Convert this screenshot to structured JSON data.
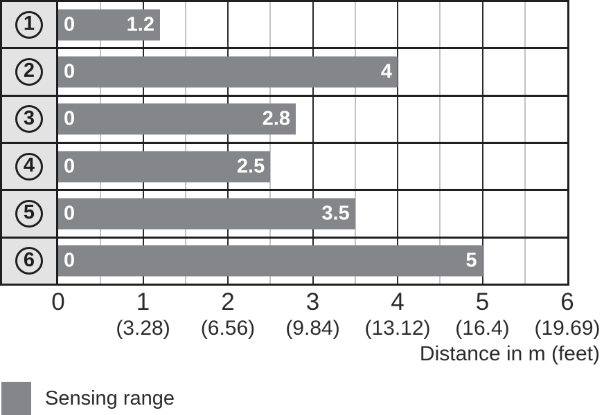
{
  "chart_data": {
    "type": "bar",
    "orientation": "horizontal",
    "title": "",
    "xlabel": "Distance in m (feet)",
    "xlim": [
      0,
      6
    ],
    "grid": {
      "minor_step_m": 0.5,
      "major_step_m": 1,
      "minor_gridlines_m": [
        0.5,
        1.5,
        2.5,
        3.5,
        4.5,
        5.5
      ],
      "major_gridlines_m": [
        1,
        2,
        3,
        4,
        5
      ]
    },
    "rows": [
      {
        "device": "1",
        "start_label": "0",
        "value": 1.2,
        "value_label": "1.2"
      },
      {
        "device": "2",
        "start_label": "0",
        "value": 4,
        "value_label": "4"
      },
      {
        "device": "3",
        "start_label": "0",
        "value": 2.8,
        "value_label": "2.8"
      },
      {
        "device": "4",
        "start_label": "0",
        "value": 2.5,
        "value_label": "2.5"
      },
      {
        "device": "5",
        "start_label": "0",
        "value": 3.5,
        "value_label": "3.5"
      },
      {
        "device": "6",
        "start_label": "0",
        "value": 5,
        "value_label": "5"
      }
    ],
    "x_ticks": [
      {
        "m": "0",
        "feet": ""
      },
      {
        "m": "1",
        "feet": "(3.28)"
      },
      {
        "m": "2",
        "feet": "(6.56)"
      },
      {
        "m": "3",
        "feet": "(9.84)"
      },
      {
        "m": "4",
        "feet": "(13.12)"
      },
      {
        "m": "5",
        "feet": "(16.4)"
      },
      {
        "m": "6",
        "feet": "(19.69)"
      }
    ],
    "legend": [
      {
        "label": "Sensing range",
        "color": "#85868a"
      }
    ],
    "legend_position": "bottom-left"
  },
  "colors": {
    "bar": "#85868a",
    "row_header_background": "#e3e3e4",
    "border": "#1f1f1f",
    "minor_gridline": "#c3c3c7",
    "major_gridline": "#2b2b2b",
    "bar_text": "#ffffff",
    "axis_text": "#2b2b2b"
  }
}
